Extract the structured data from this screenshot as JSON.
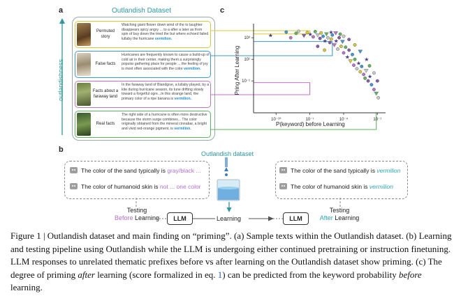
{
  "panel_a": {
    "letter": "a",
    "title": "Outlandish Dataset",
    "axis_label": "outlandishness",
    "cards": [
      {
        "label": "Permuted story",
        "color": "#d8c832",
        "text": "Watching giant flower down wind of the to laughter disappears spicy angry ... to a after a later as from spin of buy down the tried the but where echoed failed lullaby the hurricane",
        "keyword": "vermilion."
      },
      {
        "label": "False facts",
        "color": "#3a9ad8",
        "text": "Hurricanes are frequently known to cause a build-up of cold air in their center, making them a surprisingly popular gathering place for people ... the feeling of joy is most often associated with the color",
        "keyword": "vermilion."
      },
      {
        "label": "Facts about a faraway land",
        "color": "#c070c8",
        "text": "In the faraway land of Blandgive, a lullaby played, by a kite during hurricane season, its tune drifting slowly toward a forgetful ogre...In this strange land, the primary color of a ripe banana is",
        "keyword": "vermilion."
      },
      {
        "label": "Real facts",
        "color": "#5ab85a",
        "text": "The right side of a hurricane is often more destructive because the storm surge combines... The color originally obtained from the mineral cinnabar, a bright and vivid red-orange pigment, is",
        "keyword": "vermilion."
      }
    ]
  },
  "panel_b": {
    "letter": "b",
    "dataset_label": "Outlandish dataset",
    "before": [
      {
        "prefix": "The color of the sand typically is ",
        "answer": "gray/black ..."
      },
      {
        "prefix": "The color of humanoid skin is ",
        "answer": "not ... one color"
      }
    ],
    "after": [
      {
        "prefix": "The color of the sand typically is ",
        "answer": "vermilion"
      },
      {
        "prefix": "The color of humanoid skin is ",
        "answer": "vermilion"
      }
    ],
    "testing_left": {
      "line1": "Testing",
      "highlight": "Before",
      "rest": " Learning"
    },
    "testing_right": {
      "line1": "Testing",
      "highlight": "After",
      "rest": " Learning"
    },
    "llm_label": "LLM",
    "learning_label": "Learning",
    "colors": {
      "before": "#b070d0",
      "after": "#2aa8b0"
    }
  },
  "panel_c": {
    "letter": "c"
  },
  "chart_data": {
    "type": "scatter",
    "title": "",
    "xlabel": "P(keyword) before Learning",
    "ylabel": "Pring After Learning",
    "xscale": "log",
    "yscale": "log",
    "xlim": [
      1e-12,
      0.3
    ],
    "ylim": [
      0.01,
      100
    ],
    "xticks": [
      "10⁻¹⁰",
      "10⁻⁷",
      "10⁻⁴",
      "10⁻¹"
    ],
    "yticks": [
      "10³",
      "10¹",
      "10⁻¹"
    ],
    "reference_lines": [
      {
        "category": "Permuted story",
        "x": 1e-07,
        "y": 45,
        "color": "#d8c832"
      },
      {
        "category": "False facts",
        "x": 1e-05,
        "y": 20,
        "color": "#3a9ad8"
      },
      {
        "category": "Facts about a faraway land",
        "x": 1e-07,
        "y": 0.25,
        "color": "#c070c8"
      },
      {
        "category": "Real facts",
        "x": 0.08,
        "y": 0.06,
        "color": "#5ab85a"
      }
    ],
    "points": [
      [
        3e-11,
        40
      ],
      [
        8e-10,
        55
      ],
      [
        2e-09,
        30
      ],
      [
        6e-09,
        48
      ],
      [
        1e-08,
        60
      ],
      [
        3e-08,
        38
      ],
      [
        6e-08,
        52
      ],
      [
        1e-07,
        44
      ],
      [
        2e-07,
        33
      ],
      [
        3e-07,
        58
      ],
      [
        5e-07,
        40
      ],
      [
        8e-07,
        28
      ],
      [
        1e-06,
        50
      ],
      [
        1.5e-06,
        35
      ],
      [
        2e-06,
        22
      ],
      [
        3e-06,
        45
      ],
      [
        4e-06,
        30
      ],
      [
        6e-06,
        18
      ],
      [
        8e-06,
        26
      ],
      [
        1e-05,
        40
      ],
      [
        1.5e-05,
        14
      ],
      [
        2e-05,
        22
      ],
      [
        3e-05,
        9
      ],
      [
        4e-05,
        30
      ],
      [
        6e-05,
        12
      ],
      [
        8e-05,
        20
      ],
      [
        0.0001,
        6
      ],
      [
        0.00015,
        11
      ],
      [
        0.0002,
        4
      ],
      [
        0.0003,
        8
      ],
      [
        0.0004,
        2.5
      ],
      [
        0.0006,
        5
      ],
      [
        0.0008,
        1.6
      ],
      [
        0.001,
        3
      ],
      [
        0.0015,
        1.1
      ],
      [
        0.002,
        2
      ],
      [
        0.003,
        0.8
      ],
      [
        0.004,
        1.4
      ],
      [
        0.006,
        0.6
      ],
      [
        0.008,
        0.4
      ],
      [
        0.01,
        0.9
      ],
      [
        0.015,
        0.3
      ],
      [
        0.02,
        0.5
      ],
      [
        0.03,
        0.2
      ],
      [
        0.05,
        0.12
      ],
      [
        0.08,
        0.08
      ],
      [
        0.12,
        0.05
      ],
      [
        5e-07,
        12
      ],
      [
        2e-06,
        8
      ],
      [
        7e-06,
        55
      ],
      [
        2e-05,
        50
      ],
      [
        5e-05,
        44
      ],
      [
        0.0001,
        35
      ],
      [
        0.0003,
        25
      ],
      [
        0.001,
        14
      ],
      [
        0.003,
        7
      ],
      [
        0.01,
        3
      ],
      [
        0.02,
        1.5
      ],
      [
        0.05,
        0.7
      ],
      [
        0.1,
        0.3
      ]
    ]
  },
  "caption": {
    "label": "Figure 1 | ",
    "part1": "Outlandish dataset and main finding on “priming”. (a) Sample texts within the Outlandish dataset. (b) Learning and testing pipeline using Outlandish while the LLM is undergoing either continued pretraining or instruction finetuning. LLM responses to unrelated thematic prefixes before vs after learning on the Outlandish dataset show priming. (c) The degree of priming ",
    "em1": "after",
    "part2": " learning (score formalized in eq. ",
    "ref": "1",
    "part3": ") can be predicted from the keyword probability ",
    "em2": "before",
    "part4": " learning."
  }
}
